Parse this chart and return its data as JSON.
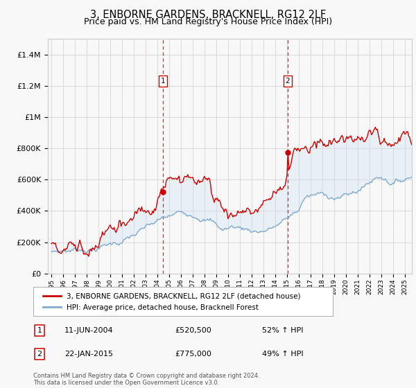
{
  "title": "3, ENBORNE GARDENS, BRACKNELL, RG12 2LF",
  "subtitle": "Price paid vs. HM Land Registry's House Price Index (HPI)",
  "legend_label_red": "3, ENBORNE GARDENS, BRACKNELL, RG12 2LF (detached house)",
  "legend_label_blue": "HPI: Average price, detached house, Bracknell Forest",
  "annotation1_price": 520500,
  "annotation2_price": 775000,
  "sale1_year": 2004.458,
  "sale2_year": 2015.05,
  "footer": "Contains HM Land Registry data © Crown copyright and database right 2024.\nThis data is licensed under the Open Government Licence v3.0.",
  "ylim": [
    0,
    1500000
  ],
  "yticks": [
    0,
    200000,
    400000,
    600000,
    800000,
    1000000,
    1200000,
    1400000
  ],
  "ytick_labels": [
    "£0",
    "£200K",
    "£400K",
    "£600K",
    "£800K",
    "£1M",
    "£1.2M",
    "£1.4M"
  ],
  "red_color": "#cc0000",
  "blue_color": "#7faacc",
  "shading_color": "#cce0f0",
  "vline_color": "#dd0000",
  "grid_color": "#cccccc",
  "bg_color": "#f8f8f8",
  "title_fontsize": 10.5,
  "subtitle_fontsize": 9,
  "tick_fontsize": 8,
  "label_fontsize": 8
}
